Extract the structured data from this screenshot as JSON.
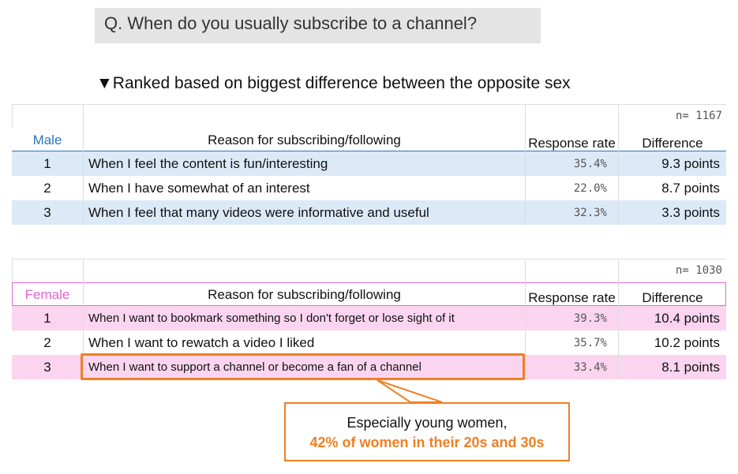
{
  "question": "Q. When do you usually subscribe to a channel?",
  "subtitle": "▼Ranked based on biggest difference between the opposite sex",
  "tables": [
    {
      "sample": "n= 1167",
      "headers": [
        "Male",
        "Reason for subscribing/following",
        "Response rate",
        "Difference"
      ],
      "rows": [
        [
          1,
          "When I feel the content is fun/interesting",
          "35.4%",
          "9.3 points"
        ],
        [
          2,
          "When I have somewhat of an interest",
          "22.0%",
          "8.7 points"
        ],
        [
          3,
          "When I feel that many videos were informative and useful",
          "32.3%",
          "3.3 points"
        ]
      ]
    },
    {
      "sample": "n= 1030",
      "headers": [
        "Female",
        "Reason for subscribing/following",
        "Response rate",
        "Difference"
      ],
      "rows": [
        [
          1,
          "When I want to bookmark something so I don't forget or lose sight of it",
          "39.3%",
          "10.4 points"
        ],
        [
          2,
          "When I want to rewatch a video I liked",
          "35.7%",
          "10.2 points"
        ],
        [
          3,
          "When I want to support a channel or become a fan of a channel",
          "33.4%",
          "8.1 points"
        ]
      ]
    }
  ],
  "callout": {
    "line1": "Especially young women,",
    "line2": "42% of women in their 20s and 30s"
  }
}
